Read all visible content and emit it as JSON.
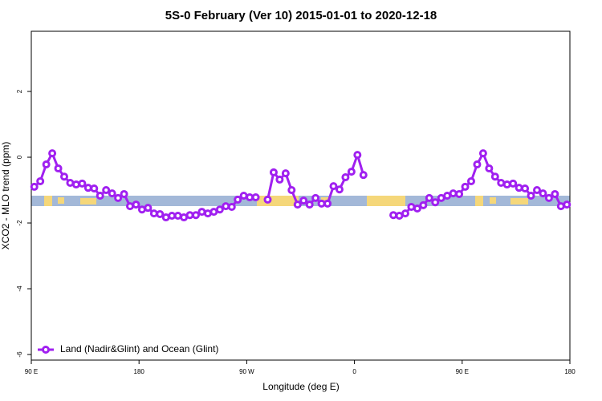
{
  "chart_data": {
    "type": "line",
    "title": "5S-0 February (Ver 10)   2015-01-01 to 2020-12-18",
    "x_label": "Longitude (deg E)",
    "y_label": "XCO2 - MLO trend (ppm)",
    "xlim": [
      90,
      540
    ],
    "xticks": [
      {
        "value": 90,
        "label": "90 E"
      },
      180,
      {
        "value": 270,
        "label": "90 W"
      },
      {
        "value": 360,
        "label": "0"
      },
      {
        "value": 450,
        "label": "90 E"
      },
      {
        "value": 540,
        "label": "180"
      }
    ],
    "ylim": [
      -6.17,
      3.83
    ],
    "yticks": [
      -6,
      -4,
      -2,
      0,
      2
    ],
    "legend": "bottom-left",
    "x": [
      92.5,
      97.5,
      102.5,
      107.5,
      112.5,
      117.5,
      122.5,
      127.5,
      132.5,
      137.5,
      142.5,
      147.5,
      152.5,
      157.5,
      162.5,
      167.5,
      172.5,
      177.5,
      182.5,
      187.5,
      192.5,
      197.5,
      202.5,
      207.5,
      212.5,
      217.5,
      222.5,
      227.5,
      232.5,
      237.5,
      242.5,
      247.5,
      252.5,
      257.5,
      262.5,
      267.5,
      272.5,
      277.5,
      282.5,
      287.5,
      292.5,
      297.5,
      302.5,
      307.5,
      312.5,
      317.5,
      322.5,
      327.5,
      332.5,
      337.5,
      342.5,
      347.5,
      352.5,
      357.5,
      362.5,
      367.5,
      372.5,
      377.5,
      382.5,
      387.5,
      392.5,
      397.5,
      402.5,
      407.5,
      412.5,
      417.5,
      422.5,
      427.5,
      432.5,
      437.5,
      442.5,
      447.5,
      452.5,
      457.5,
      462.5,
      467.5,
      472.5,
      477.5,
      482.5,
      487.5,
      492.5,
      497.5,
      502.5,
      507.5,
      512.5,
      517.5,
      522.5,
      527.5,
      532.5,
      537.5
    ],
    "series": [
      {
        "name": "Land (Nadir&Glint) and Ocean (Glint)",
        "color": "#a020f0",
        "values": [
          -0.9,
          -0.73,
          -0.22,
          0.12,
          -0.34,
          -0.59,
          -0.78,
          -0.83,
          -0.8,
          -0.93,
          -0.95,
          -1.17,
          -1.0,
          -1.1,
          -1.24,
          -1.12,
          -1.49,
          -1.44,
          -1.59,
          -1.54,
          -1.71,
          -1.73,
          -1.83,
          -1.78,
          -1.78,
          -1.83,
          -1.76,
          -1.76,
          -1.66,
          -1.71,
          -1.66,
          -1.59,
          -1.49,
          -1.51,
          -1.29,
          -1.17,
          -1.22,
          -1.22,
          null,
          -1.29,
          -0.46,
          -0.68,
          -0.49,
          -1.0,
          -1.44,
          -1.32,
          -1.44,
          -1.24,
          -1.41,
          -1.41,
          -0.88,
          -0.98,
          -0.61,
          -0.44,
          0.07,
          -0.54,
          null,
          null,
          null,
          null,
          -1.76,
          -1.78,
          -1.71,
          -1.51,
          -1.56,
          -1.46,
          -1.24,
          -1.37,
          -1.24,
          -1.17,
          -1.1,
          -1.12,
          -0.9,
          -0.73,
          -0.22,
          0.12,
          -0.34,
          -0.59,
          -0.78,
          -0.83,
          -0.8,
          -0.93,
          -0.95,
          -1.17,
          -1.0,
          -1.1,
          -1.24,
          -1.12,
          -1.49,
          -1.44
        ]
      }
    ]
  }
}
